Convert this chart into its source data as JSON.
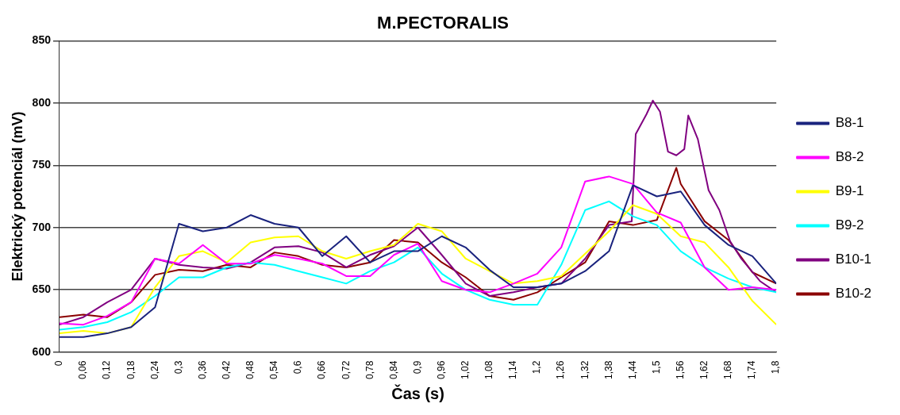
{
  "chart_data": {
    "type": "line",
    "title": "M.PECTORALIS",
    "xlabel": "Čas (s)",
    "ylabel": "Elektrický potenciál (mV)",
    "x": [
      0,
      0.06,
      0.12,
      0.18,
      0.24,
      0.3,
      0.36,
      0.42,
      0.48,
      0.54,
      0.6,
      0.66,
      0.72,
      0.78,
      0.84,
      0.9,
      0.96,
      1.02,
      1.08,
      1.14,
      1.2,
      1.26,
      1.32,
      1.38,
      1.44,
      1.5,
      1.56,
      1.62,
      1.68,
      1.74,
      1.8
    ],
    "series": [
      {
        "name": "B8-1",
        "color": "#1a237e",
        "values": [
          612,
          612,
          615,
          620,
          636,
          703,
          697,
          700,
          710,
          703,
          700,
          677,
          693,
          672,
          681,
          681,
          693,
          684,
          666,
          652,
          652,
          655,
          665,
          681,
          734,
          725,
          729,
          702,
          686,
          677,
          655
        ]
      },
      {
        "name": "B8-2",
        "color": "#ff00ff",
        "values": [
          623,
          622,
          629,
          640,
          675,
          671,
          686,
          671,
          671,
          678,
          675,
          671,
          661,
          661,
          678,
          687,
          657,
          650,
          648,
          655,
          663,
          684,
          737,
          741,
          735,
          712,
          704,
          668,
          650,
          652,
          650
        ]
      },
      {
        "name": "B9-1",
        "color": "#ffff00",
        "values": [
          615,
          617,
          615,
          620,
          652,
          677,
          681,
          672,
          688,
          692,
          693,
          681,
          675,
          681,
          686,
          703,
          697,
          675,
          665,
          655,
          657,
          661,
          679,
          697,
          718,
          711,
          693,
          688,
          668,
          641,
          622
        ]
      },
      {
        "name": "B9-2",
        "color": "#00ffff",
        "values": [
          618,
          620,
          624,
          632,
          645,
          660,
          660,
          668,
          672,
          670,
          665,
          660,
          655,
          665,
          672,
          684,
          663,
          650,
          642,
          638,
          638,
          670,
          714,
          721,
          709,
          702,
          681,
          668,
          659,
          652,
          648
        ]
      },
      {
        "name": "B10-1",
        "color": "#800080",
        "x": [
          0,
          0.06,
          0.12,
          0.18,
          0.24,
          0.3,
          0.36,
          0.42,
          0.48,
          0.54,
          0.6,
          0.66,
          0.72,
          0.78,
          0.84,
          0.9,
          0.96,
          1.02,
          1.08,
          1.14,
          1.2,
          1.26,
          1.32,
          1.38,
          1.437,
          1.447,
          1.474,
          1.49,
          1.508,
          1.528,
          1.549,
          1.569,
          1.579,
          1.603,
          1.63,
          1.657,
          1.684,
          1.712,
          1.759,
          1.8
        ],
        "values": [
          622,
          628,
          640,
          650,
          675,
          670,
          668,
          667,
          672,
          684,
          685,
          680,
          668,
          678,
          685,
          700,
          678,
          655,
          645,
          648,
          652,
          655,
          675,
          702,
          705,
          775,
          791,
          802,
          793,
          761,
          758,
          763,
          790,
          771,
          730,
          714,
          689,
          675,
          657,
          648
        ]
      },
      {
        "name": "B10-2",
        "color": "#8b0000",
        "x": [
          0,
          0.06,
          0.12,
          0.18,
          0.24,
          0.3,
          0.36,
          0.42,
          0.48,
          0.54,
          0.6,
          0.66,
          0.72,
          0.78,
          0.84,
          0.9,
          0.96,
          1.02,
          1.08,
          1.14,
          1.2,
          1.26,
          1.32,
          1.38,
          1.44,
          1.5,
          1.549,
          1.56,
          1.62,
          1.68,
          1.74,
          1.8
        ],
        "values": [
          628,
          630,
          628,
          640,
          662,
          666,
          665,
          670,
          668,
          680,
          677,
          670,
          668,
          672,
          690,
          688,
          672,
          660,
          645,
          642,
          648,
          660,
          672,
          705,
          702,
          706,
          748,
          735,
          705,
          690,
          664,
          655
        ]
      }
    ],
    "xlim": [
      0,
      1.8
    ],
    "xticks": [
      0,
      {
        "value": 0.06,
        "label": "0,06"
      },
      {
        "value": 0.12,
        "label": "0,12"
      },
      {
        "value": 0.18,
        "label": "0,18"
      },
      {
        "value": 0.24,
        "label": "0,24"
      },
      {
        "value": 0.3,
        "label": "0,3"
      },
      {
        "value": 0.36,
        "label": "0,36"
      },
      {
        "value": 0.42,
        "label": "0,42"
      },
      {
        "value": 0.48,
        "label": "0,48"
      },
      {
        "value": 0.54,
        "label": "0,54"
      },
      {
        "value": 0.6,
        "label": "0,6"
      },
      {
        "value": 0.66,
        "label": "0,66"
      },
      {
        "value": 0.72,
        "label": "0,72"
      },
      {
        "value": 0.78,
        "label": "0,78"
      },
      {
        "value": 0.84,
        "label": "0,84"
      },
      {
        "value": 0.9,
        "label": "0,9"
      },
      {
        "value": 0.96,
        "label": "0,96"
      },
      {
        "value": 1.02,
        "label": "1,02"
      },
      {
        "value": 1.08,
        "label": "1,08"
      },
      {
        "value": 1.14,
        "label": "1,14"
      },
      {
        "value": 1.2,
        "label": "1,2"
      },
      {
        "value": 1.26,
        "label": "1,26"
      },
      {
        "value": 1.32,
        "label": "1,32"
      },
      {
        "value": 1.38,
        "label": "1,38"
      },
      {
        "value": 1.44,
        "label": "1,44"
      },
      {
        "value": 1.5,
        "label": "1,5"
      },
      {
        "value": 1.56,
        "label": "1,56"
      },
      {
        "value": 1.62,
        "label": "1,62"
      },
      {
        "value": 1.68,
        "label": "1,68"
      },
      {
        "value": 1.74,
        "label": "1,74"
      },
      {
        "value": 1.8,
        "label": "1,8"
      }
    ],
    "ylim": [
      600,
      850
    ],
    "yticks": [
      600,
      650,
      700,
      750,
      800,
      850
    ],
    "grid": "y",
    "legend": "right",
    "marker": "none",
    "line_style": "solid"
  }
}
